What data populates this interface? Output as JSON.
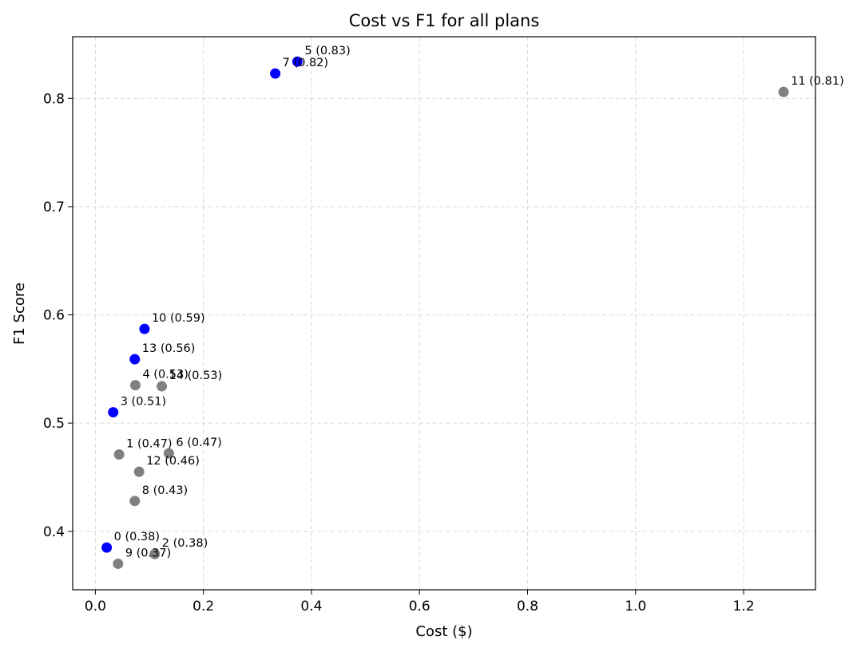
{
  "chart_data": {
    "type": "scatter",
    "title": "Cost vs F1 for all plans",
    "xlabel": "Cost ($)",
    "ylabel": "F1 Score",
    "xlim": [
      -0.042,
      1.333
    ],
    "ylim": [
      0.346,
      0.857
    ],
    "x_ticks": [
      0.0,
      0.2,
      0.4,
      0.6,
      0.8,
      1.0,
      1.2
    ],
    "x_tick_labels": [
      "0.0",
      "0.2",
      "0.4",
      "0.6",
      "0.8",
      "1.0",
      "1.2"
    ],
    "y_ticks": [
      0.4,
      0.5,
      0.6,
      0.7,
      0.8
    ],
    "y_tick_labels": [
      "0.4",
      "0.5",
      "0.6",
      "0.7",
      "0.8"
    ],
    "grid": true,
    "colors": {
      "highlight": "#0000ff",
      "other": "#808080"
    },
    "points": [
      {
        "id": "0",
        "x": 0.021,
        "y": 0.385,
        "label": "0 (0.38)",
        "color": "highlight"
      },
      {
        "id": "1",
        "x": 0.044,
        "y": 0.471,
        "label": "1 (0.47)",
        "color": "other"
      },
      {
        "id": "2",
        "x": 0.11,
        "y": 0.379,
        "label": "2 (0.38)",
        "color": "other"
      },
      {
        "id": "3",
        "x": 0.033,
        "y": 0.51,
        "label": "3 (0.51)",
        "color": "highlight"
      },
      {
        "id": "4",
        "x": 0.074,
        "y": 0.535,
        "label": "4 (0.53)",
        "color": "other"
      },
      {
        "id": "5",
        "x": 0.374,
        "y": 0.834,
        "label": "5 (0.83)",
        "color": "highlight"
      },
      {
        "id": "6",
        "x": 0.136,
        "y": 0.472,
        "label": "6 (0.47)",
        "color": "other"
      },
      {
        "id": "7",
        "x": 0.333,
        "y": 0.823,
        "label": "7 (0.82)",
        "color": "highlight"
      },
      {
        "id": "8",
        "x": 0.073,
        "y": 0.428,
        "label": "8 (0.43)",
        "color": "other"
      },
      {
        "id": "9",
        "x": 0.042,
        "y": 0.37,
        "label": "9 (0.37)",
        "color": "other"
      },
      {
        "id": "10",
        "x": 0.091,
        "y": 0.587,
        "label": "10 (0.59)",
        "color": "highlight"
      },
      {
        "id": "11",
        "x": 1.274,
        "y": 0.806,
        "label": "11 (0.81)",
        "color": "other"
      },
      {
        "id": "12",
        "x": 0.081,
        "y": 0.455,
        "label": "12 (0.46)",
        "color": "other"
      },
      {
        "id": "13",
        "x": 0.073,
        "y": 0.559,
        "label": "13 (0.56)",
        "color": "highlight"
      },
      {
        "id": "14",
        "x": 0.123,
        "y": 0.534,
        "label": "14 (0.53)",
        "color": "other"
      }
    ]
  }
}
